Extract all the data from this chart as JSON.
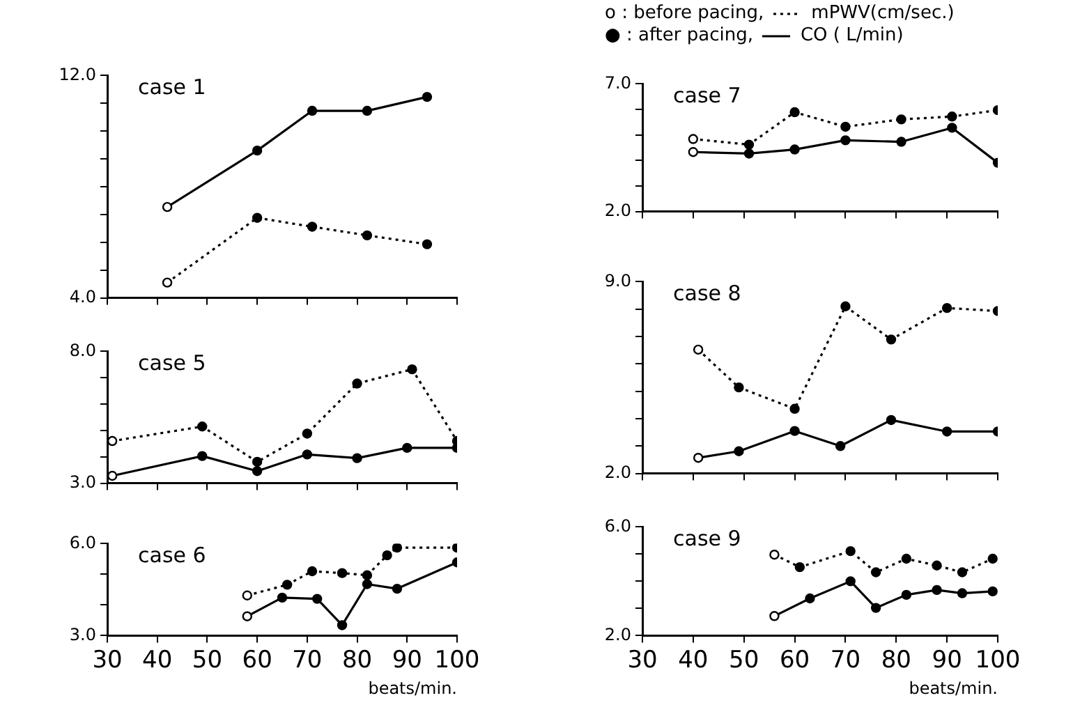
{
  "chart_data": [
    {
      "type": "line",
      "title": "case 1",
      "xlim": [
        30,
        100
      ],
      "xticks": [
        30,
        40,
        50,
        60,
        70,
        80,
        90,
        100
      ],
      "ylim": [
        4,
        12
      ],
      "yticks": [
        {
          "value": 4,
          "label": "4.0"
        },
        {
          "value": 5,
          "label": null
        },
        {
          "value": 6,
          "label": null
        },
        {
          "value": 7,
          "label": null
        },
        {
          "value": 8,
          "label": null
        },
        {
          "value": 9,
          "label": null
        },
        {
          "value": 10,
          "label": null
        },
        {
          "value": 11,
          "label": null
        },
        {
          "value": 12,
          "label": "12.0"
        }
      ],
      "tick_labels": "y",
      "grid": false,
      "marker": "circle",
      "series": [
        {
          "color": "#000000",
          "line_style": "dotted",
          "x": [
            42,
            60,
            71,
            82,
            94
          ],
          "values": [
            4.55,
            6.88,
            6.56,
            6.25,
            5.93
          ]
        },
        {
          "color": "#000000",
          "line_style": "solid",
          "x": [
            42,
            60,
            71,
            82,
            94
          ],
          "values": [
            7.27,
            9.3,
            10.73,
            10.73,
            11.23
          ]
        }
      ]
    },
    {
      "type": "line",
      "title": "case 7",
      "xlim": [
        30,
        100
      ],
      "xticks": [
        30,
        40,
        50,
        60,
        70,
        80,
        90,
        100
      ],
      "ylim": [
        2,
        7
      ],
      "yticks": [
        {
          "value": 2,
          "label": "2.0"
        },
        {
          "value": 3,
          "label": null
        },
        {
          "value": 4,
          "label": null
        },
        {
          "value": 5,
          "label": null
        },
        {
          "value": 6,
          "label": null
        },
        {
          "value": 7,
          "label": "7.0"
        }
      ],
      "tick_labels": "y",
      "grid": false,
      "marker": "circle",
      "legend": "top right",
      "annotations": [
        "o : before pacing,",
        "● : after pacing,"
      ],
      "series": [
        {
          "name": "mPWV(cm/sec.)",
          "color": "#000000",
          "line_style": "dotted",
          "x": [
            40,
            51,
            60,
            70,
            81,
            91,
            100
          ],
          "values": [
            4.84,
            4.62,
            5.89,
            5.32,
            5.61,
            5.72,
            5.97
          ]
        },
        {
          "name": "CO ( L/min)",
          "color": "#000000",
          "line_style": "solid",
          "x": [
            40,
            51,
            60,
            70,
            81,
            91,
            100
          ],
          "values": [
            4.33,
            4.27,
            4.43,
            4.79,
            4.73,
            5.28,
            3.91
          ]
        }
      ]
    },
    {
      "type": "line",
      "title": "case 5",
      "xlim": [
        30,
        100
      ],
      "xticks": [
        30,
        40,
        50,
        60,
        70,
        80,
        90,
        100
      ],
      "ylim": [
        3,
        8
      ],
      "yticks": [
        {
          "value": 3,
          "label": "3.0"
        },
        {
          "value": 4,
          "label": null
        },
        {
          "value": 5,
          "label": null
        },
        {
          "value": 6,
          "label": null
        },
        {
          "value": 7,
          "label": null
        },
        {
          "value": 8,
          "label": "8.0"
        }
      ],
      "tick_labels": "y",
      "grid": false,
      "marker": "circle",
      "series": [
        {
          "color": "#000000",
          "line_style": "dotted",
          "x": [
            31,
            49,
            60,
            70,
            80,
            91,
            100
          ],
          "values": [
            4.6,
            5.15,
            3.81,
            4.88,
            6.78,
            7.32,
            4.6
          ]
        },
        {
          "color": "#000000",
          "line_style": "solid",
          "x": [
            31,
            49,
            60,
            70,
            80,
            90,
            100
          ],
          "values": [
            3.28,
            4.03,
            3.46,
            4.09,
            3.95,
            4.34,
            4.34
          ]
        }
      ]
    },
    {
      "type": "line",
      "title": "case 8",
      "xlim": [
        30,
        100
      ],
      "xticks": [
        30,
        40,
        50,
        60,
        70,
        80,
        90,
        100
      ],
      "ylim": [
        2,
        9
      ],
      "yticks": [
        {
          "value": 2,
          "label": "2.0"
        },
        {
          "value": 3,
          "label": null
        },
        {
          "value": 4,
          "label": null
        },
        {
          "value": 5,
          "label": null
        },
        {
          "value": 6,
          "label": null
        },
        {
          "value": 7,
          "label": null
        },
        {
          "value": 8,
          "label": null
        },
        {
          "value": 9,
          "label": "9.0"
        }
      ],
      "tick_labels": "y",
      "grid": false,
      "marker": "circle",
      "series": [
        {
          "color": "#000000",
          "line_style": "dotted",
          "x": [
            41,
            49,
            60,
            70,
            79,
            90,
            100
          ],
          "values": [
            6.52,
            5.14,
            4.36,
            8.1,
            6.89,
            8.04,
            7.93
          ]
        },
        {
          "color": "#000000",
          "line_style": "solid",
          "x": [
            41,
            49,
            60,
            69,
            79,
            90,
            100
          ],
          "values": [
            2.57,
            2.81,
            3.55,
            3.0,
            3.95,
            3.53,
            3.53
          ]
        }
      ]
    },
    {
      "type": "line",
      "title": "case 6",
      "xlabel": "beats/min.",
      "xlim": [
        30,
        100
      ],
      "xticks": [
        30,
        40,
        50,
        60,
        70,
        80,
        90,
        100
      ],
      "ylim": [
        3,
        6
      ],
      "yticks": [
        {
          "value": 3,
          "label": "3.0"
        },
        {
          "value": 4,
          "label": null
        },
        {
          "value": 5,
          "label": null
        },
        {
          "value": 6,
          "label": "6.0"
        }
      ],
      "grid": false,
      "marker": "circle",
      "series": [
        {
          "color": "#000000",
          "line_style": "dotted",
          "x": [
            58,
            66,
            71,
            77,
            82,
            86,
            88,
            100
          ],
          "values": [
            4.31,
            4.66,
            5.1,
            5.04,
            4.97,
            5.62,
            5.87,
            5.87
          ]
        },
        {
          "color": "#000000",
          "line_style": "solid",
          "x": [
            58,
            65,
            72,
            77,
            82,
            88,
            100
          ],
          "values": [
            3.63,
            4.24,
            4.2,
            3.34,
            4.68,
            4.53,
            5.39
          ]
        }
      ]
    },
    {
      "type": "line",
      "title": "case 9",
      "xlabel": "beats/min.",
      "xlim": [
        30,
        100
      ],
      "xticks": [
        30,
        40,
        50,
        60,
        70,
        80,
        90,
        100
      ],
      "ylim": [
        2,
        6
      ],
      "yticks": [
        {
          "value": 2,
          "label": "2.0"
        },
        {
          "value": 3,
          "label": null
        },
        {
          "value": 4,
          "label": null
        },
        {
          "value": 5,
          "label": null
        },
        {
          "value": 6,
          "label": "6.0"
        }
      ],
      "grid": false,
      "marker": "circle",
      "series": [
        {
          "color": "#000000",
          "line_style": "dotted",
          "x": [
            56,
            61,
            71,
            76,
            82,
            88,
            93,
            99
          ],
          "values": [
            4.98,
            4.52,
            5.11,
            4.33,
            4.83,
            4.58,
            4.33,
            4.83
          ]
        },
        {
          "color": "#000000",
          "line_style": "solid",
          "x": [
            56,
            63,
            71,
            76,
            82,
            88,
            93,
            99
          ],
          "values": [
            2.72,
            3.37,
            4.0,
            3.02,
            3.5,
            3.68,
            3.56,
            3.63
          ]
        }
      ]
    }
  ]
}
